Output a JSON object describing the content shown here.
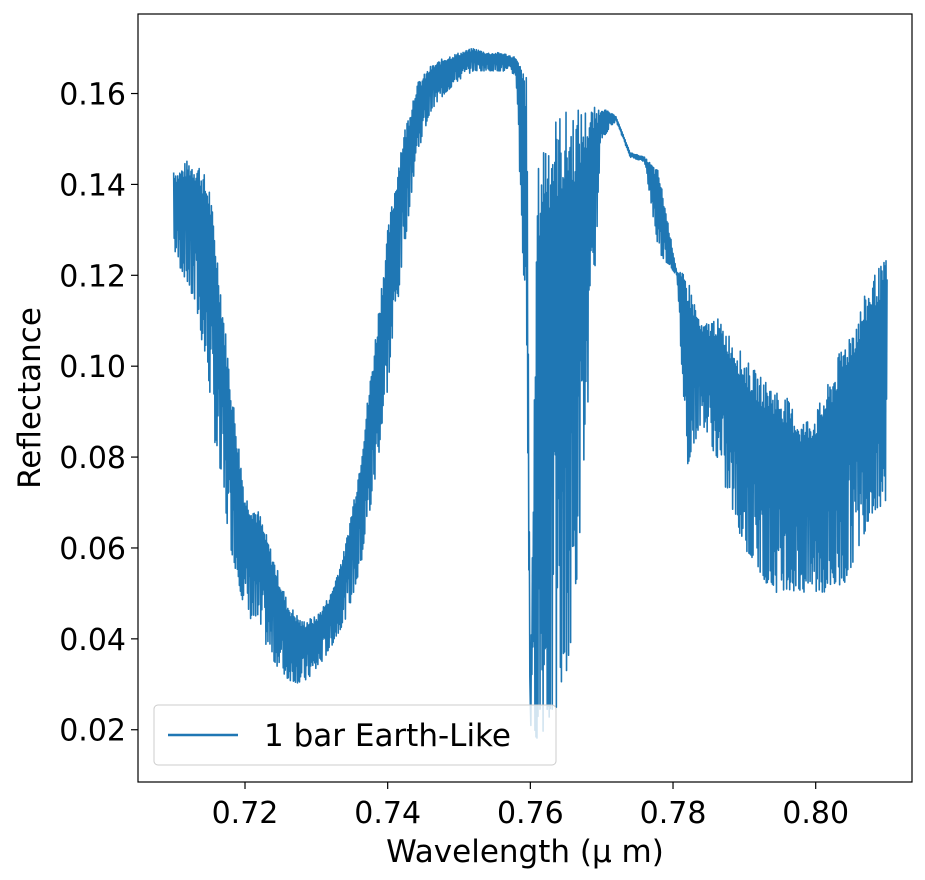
{
  "chart_data": {
    "type": "line",
    "xlabel": "Wavelength (μ m)",
    "ylabel": "Reflectance",
    "xlim": [
      0.705,
      0.8135
    ],
    "ylim": [
      0.0085,
      0.1775
    ],
    "xticks": [
      0.72,
      0.74,
      0.76,
      0.78,
      0.8
    ],
    "xtick_labels": [
      "0.72",
      "0.74",
      "0.76",
      "0.78",
      "0.80"
    ],
    "yticks": [
      0.02,
      0.04,
      0.06,
      0.08,
      0.1,
      0.12,
      0.14,
      0.16
    ],
    "ytick_labels": [
      "0.02",
      "0.04",
      "0.06",
      "0.08",
      "0.10",
      "0.12",
      "0.14",
      "0.16"
    ],
    "grid": false,
    "legend_position": "lower-left",
    "series": [
      {
        "name": "1 bar Earth-Like",
        "color": "#1f77b4",
        "envelope": {
          "x": [
            0.71,
            0.7105,
            0.712,
            0.7135,
            0.715,
            0.716,
            0.718,
            0.72,
            0.722,
            0.724,
            0.726,
            0.728,
            0.73,
            0.732,
            0.734,
            0.736,
            0.738,
            0.74,
            0.742,
            0.744,
            0.746,
            0.748,
            0.75,
            0.752,
            0.754,
            0.756,
            0.758,
            0.7595,
            0.76,
            0.761,
            0.762,
            0.764,
            0.766,
            0.768,
            0.77,
            0.772,
            0.774,
            0.776,
            0.778,
            0.7805,
            0.782,
            0.784,
            0.786,
            0.788,
            0.79,
            0.792,
            0.794,
            0.796,
            0.798,
            0.8,
            0.802,
            0.804,
            0.806,
            0.808,
            0.81
          ],
          "upper": [
            0.144,
            0.143,
            0.1455,
            0.145,
            0.14,
            0.127,
            0.097,
            0.072,
            0.068,
            0.058,
            0.048,
            0.044,
            0.045,
            0.05,
            0.06,
            0.078,
            0.103,
            0.13,
            0.15,
            0.162,
            0.166,
            0.168,
            0.169,
            0.17,
            0.169,
            0.169,
            0.168,
            0.164,
            0.026,
            0.143,
            0.153,
            0.156,
            0.157,
            0.157,
            0.157,
            0.155,
            0.147,
            0.146,
            0.143,
            0.121,
            0.12,
            0.109,
            0.111,
            0.107,
            0.102,
            0.098,
            0.096,
            0.093,
            0.088,
            0.09,
            0.097,
            0.106,
            0.112,
            0.12,
            0.124
          ],
          "lower": [
            0.126,
            0.123,
            0.118,
            0.11,
            0.095,
            0.08,
            0.06,
            0.046,
            0.042,
            0.035,
            0.031,
            0.03,
            0.033,
            0.038,
            0.044,
            0.054,
            0.072,
            0.095,
            0.122,
            0.146,
            0.156,
            0.16,
            0.163,
            0.165,
            0.165,
            0.165,
            0.164,
            0.1,
            0.02,
            0.018,
            0.02,
            0.025,
            0.04,
            0.09,
            0.15,
            0.154,
            0.146,
            0.145,
            0.125,
            0.12,
            0.078,
            0.088,
            0.08,
            0.07,
            0.06,
            0.055,
            0.05,
            0.051,
            0.05,
            0.05,
            0.05,
            0.052,
            0.06,
            0.068,
            0.07
          ]
        }
      }
    ]
  }
}
